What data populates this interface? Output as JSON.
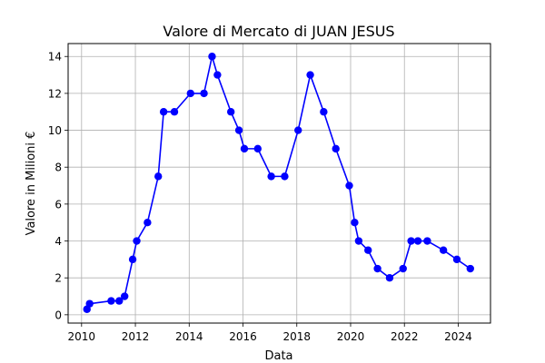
{
  "chart_data": {
    "type": "line",
    "title": "Valore di Mercato di JUAN JESUS",
    "xlabel": "Data",
    "ylabel": "Valore in Milioni €",
    "xlim": [
      2009.5,
      2025.2
    ],
    "ylim": [
      -0.45,
      14.7
    ],
    "x_ticks": [
      2010,
      2012,
      2014,
      2016,
      2018,
      2020,
      2022,
      2024
    ],
    "y_ticks": [
      0,
      2,
      4,
      6,
      8,
      10,
      12,
      14
    ],
    "grid": true,
    "series": [
      {
        "color": "#0000ff",
        "x": [
          2010.2,
          2010.3,
          2011.1,
          2011.4,
          2011.6,
          2011.9,
          2012.05,
          2012.45,
          2012.85,
          2013.05,
          2013.45,
          2014.05,
          2014.55,
          2014.85,
          2015.05,
          2015.55,
          2015.85,
          2016.05,
          2016.55,
          2017.05,
          2017.55,
          2018.05,
          2018.5,
          2019.0,
          2019.45,
          2019.95,
          2020.15,
          2020.3,
          2020.65,
          2021.0,
          2021.45,
          2021.95,
          2022.25,
          2022.5,
          2022.85,
          2023.45,
          2023.95,
          2024.45
        ],
        "values": [
          0.3,
          0.6,
          0.75,
          0.75,
          1.0,
          3.0,
          4.0,
          5.0,
          7.5,
          11.0,
          11.0,
          12.0,
          12.0,
          14.0,
          13.0,
          11.0,
          10.0,
          9.0,
          9.0,
          7.5,
          7.5,
          10.0,
          13.0,
          11.0,
          9.0,
          7.0,
          5.0,
          4.0,
          3.5,
          2.5,
          2.0,
          2.5,
          4.0,
          4.0,
          4.0,
          3.5,
          3.0,
          2.5
        ]
      }
    ]
  }
}
